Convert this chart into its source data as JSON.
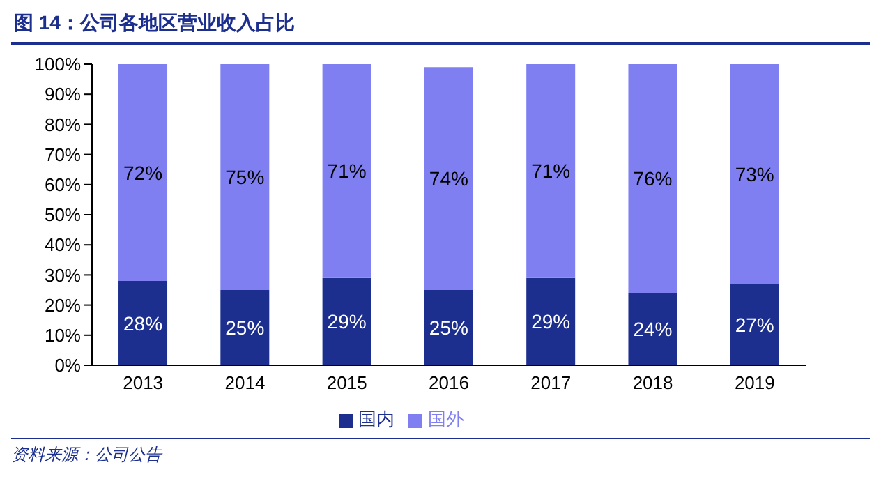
{
  "chart_data": {
    "type": "bar",
    "title": "图 14：公司各地区营业收入占比",
    "stacked": true,
    "categories": [
      "2013",
      "2014",
      "2015",
      "2016",
      "2017",
      "2018",
      "2019"
    ],
    "series": [
      {
        "name": "国内",
        "color": "#1c2f8f",
        "values": [
          28,
          25,
          29,
          25,
          29,
          24,
          27
        ],
        "value_labels": [
          "28%",
          "25%",
          "29%",
          "25%",
          "29%",
          "24%",
          "27%"
        ]
      },
      {
        "name": "国外",
        "color": "#7f7ff2",
        "values": [
          72,
          75,
          71,
          74,
          71,
          76,
          73
        ],
        "value_labels": [
          "72%",
          "75%",
          "71%",
          "74%",
          "71%",
          "76%",
          "73%"
        ]
      }
    ],
    "ylim": [
      0,
      100
    ],
    "yticks": [
      {
        "value": 0,
        "label": "0%"
      },
      {
        "value": 10,
        "label": "10%"
      },
      {
        "value": 20,
        "label": "20%"
      },
      {
        "value": 30,
        "label": "30%"
      },
      {
        "value": 40,
        "label": "40%"
      },
      {
        "value": 50,
        "label": "50%"
      },
      {
        "value": 60,
        "label": "60%"
      },
      {
        "value": 70,
        "label": "70%"
      },
      {
        "value": 80,
        "label": "80%"
      },
      {
        "value": 90,
        "label": "90%"
      },
      {
        "value": 100,
        "label": "100%"
      }
    ],
    "grid": false,
    "legend": "bottom",
    "annotations": [
      "资料来源：公司公告"
    ]
  }
}
